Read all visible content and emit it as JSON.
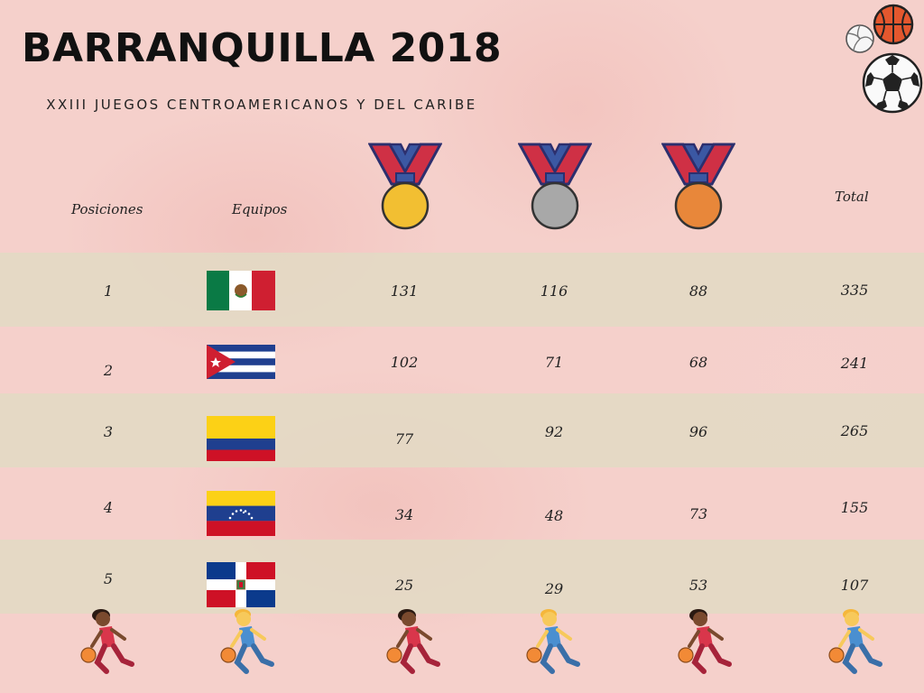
{
  "title": "BARRANQUILLA 2018",
  "subtitle": "XXIII JUEGOS CENTROAMERICANOS Y DEL CARIBE",
  "headers": {
    "position": "Posiciones",
    "team": "Equipos",
    "total": "Total"
  },
  "medal_colors": {
    "gold": "#f2bf32",
    "silver": "#a8a8a8",
    "bronze": "#e8873a"
  },
  "rows": [
    {
      "pos": "1",
      "flag": "mexico-flag",
      "gold": "131",
      "silver": "116",
      "bronze": "88",
      "total": "335"
    },
    {
      "pos": "2",
      "flag": "cuba-flag",
      "gold": "102",
      "silver": "71",
      "bronze": "68",
      "total": "241"
    },
    {
      "pos": "3",
      "flag": "colombia-flag",
      "gold": "77",
      "silver": "92",
      "bronze": "96",
      "total": "265"
    },
    {
      "pos": "4",
      "flag": "venezuela-flag",
      "gold": "34",
      "silver": "48",
      "bronze": "73",
      "total": "155"
    },
    {
      "pos": "5",
      "flag": "dominican-republic-flag",
      "gold": "25",
      "silver": "29",
      "bronze": "53",
      "total": "107"
    }
  ]
}
